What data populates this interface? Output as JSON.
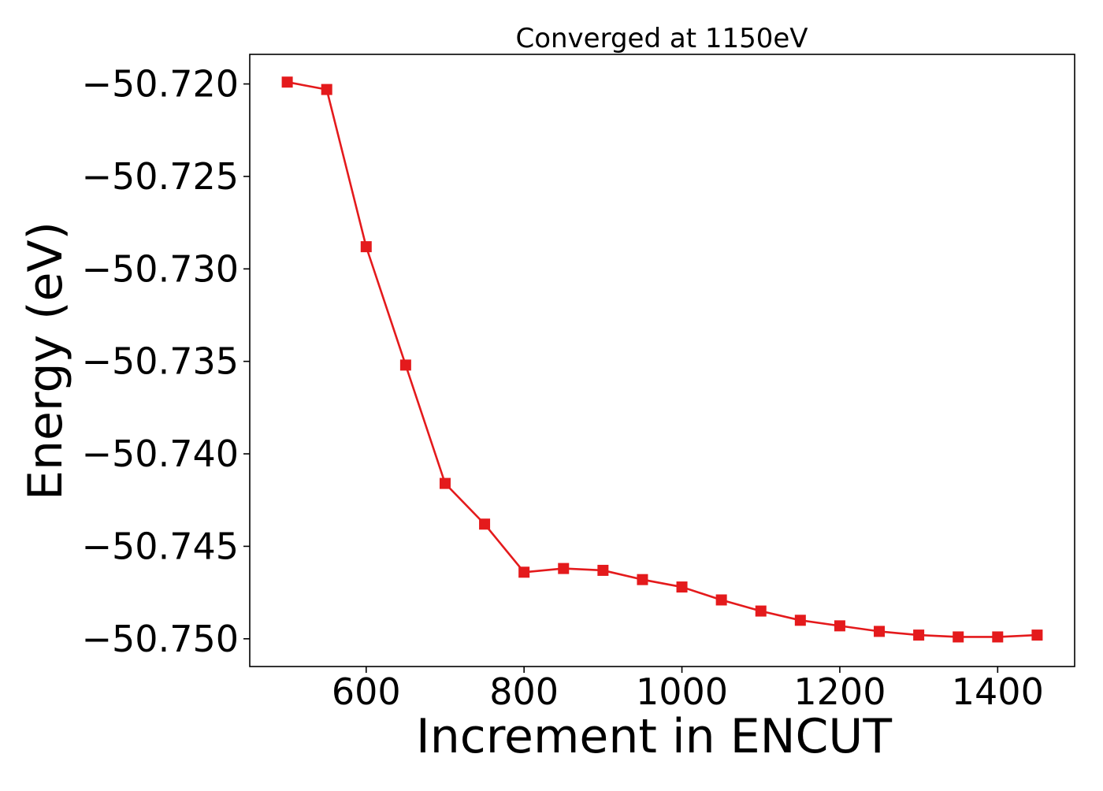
{
  "chart_data": {
    "type": "line",
    "title": "Converged at 1150eV",
    "xlabel": "Increment in ENCUT",
    "ylabel": "Energy (eV)",
    "x": [
      500,
      550,
      600,
      650,
      700,
      750,
      800,
      850,
      900,
      950,
      1000,
      1050,
      1100,
      1150,
      1200,
      1250,
      1300,
      1350,
      1400,
      1450
    ],
    "series": [
      {
        "values": [
          -50.7199,
          -50.7203,
          -50.7288,
          -50.7352,
          -50.7416,
          -50.7438,
          -50.7464,
          -50.7462,
          -50.7463,
          -50.7468,
          -50.7472,
          -50.7479,
          -50.7485,
          -50.749,
          -50.7493,
          -50.7496,
          -50.7498,
          -50.7499,
          -50.7499,
          -50.7498
        ],
        "color": "#e41a1c",
        "marker": "square"
      }
    ],
    "xlim": [
      452.5,
      1497.5
    ],
    "ylim": [
      -50.7515,
      -50.7184
    ],
    "xticks": [
      600,
      800,
      1000,
      1200,
      1400
    ],
    "xtick_labels": [
      "600",
      "800",
      "1000",
      "1200",
      "1400"
    ],
    "yticks": [
      -50.72,
      -50.725,
      -50.73,
      -50.735,
      -50.74,
      -50.745,
      -50.75
    ],
    "ytick_labels": [
      "−50.720",
      "−50.725",
      "−50.730",
      "−50.735",
      "−50.740",
      "−50.745",
      "−50.750"
    ],
    "grid": false,
    "legend": "none"
  }
}
